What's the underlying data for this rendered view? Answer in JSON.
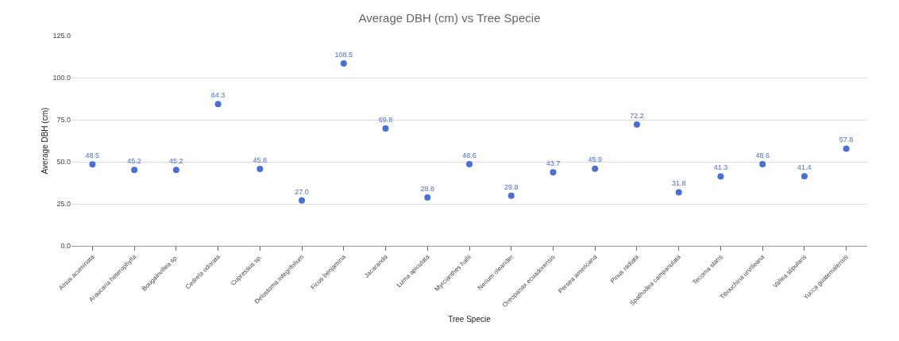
{
  "chart_data": {
    "type": "scatter",
    "title": "Average DBH (cm) vs Tree Specie",
    "xlabel": "Tree Specie",
    "ylabel": "Average DBH (cm)",
    "categories": [
      "Alnus acuminata",
      "Araucaria heterophylla",
      "Bougainvillea sp.",
      "Cedrela odorata",
      "Cupressus sp.",
      "Delostoma integrifolium",
      "Ficus benjamina",
      "Jacaranda",
      "Luma apiculata",
      "Myrcianthes hallii",
      "Nerium oleander",
      "Oreopanax ecuadorensis",
      "Persea americana",
      "Pinus radiata",
      "Spathodea campanulata",
      "Tecoma stans",
      "Tibouchina urvilleana",
      "Vallea stipularis",
      "Yucca guatemalensis"
    ],
    "values": [
      48.5,
      45.2,
      45.2,
      84.3,
      45.8,
      27.0,
      108.5,
      69.8,
      28.8,
      48.6,
      29.8,
      43.7,
      45.9,
      72.2,
      31.8,
      41.3,
      48.6,
      41.4,
      57.8
    ],
    "value_labels": [
      "48.5",
      "45.2",
      "45.2",
      "84.3",
      "45.8",
      "27.0",
      "108.5",
      "69.8",
      "28.8",
      "48.6",
      "29.8",
      "43.7",
      "45.9",
      "72.2",
      "31.8",
      "41.3",
      "48.6",
      "41.4",
      "57.8"
    ],
    "color": "#4a6fd8",
    "marker": "circle",
    "grid": "y",
    "legend": false,
    "ylim": [
      0,
      125
    ],
    "yticks": [
      {
        "value": 0,
        "label": "0.0"
      },
      {
        "value": 25,
        "label": "25.0"
      },
      {
        "value": 50,
        "label": "50.0"
      },
      {
        "value": 75,
        "label": "75.0"
      },
      {
        "value": 100,
        "label": "100.0"
      },
      {
        "value": 125,
        "label": "125.0"
      }
    ]
  }
}
